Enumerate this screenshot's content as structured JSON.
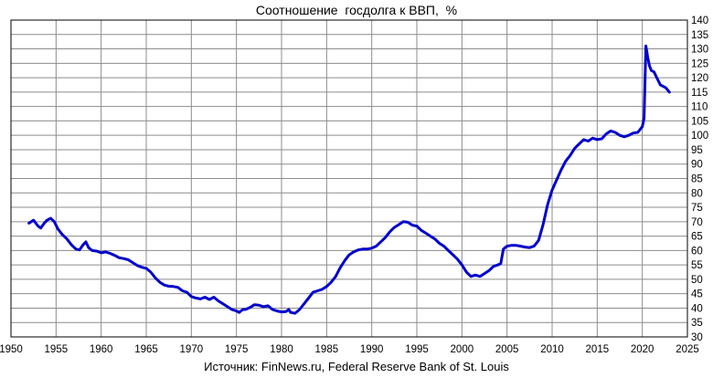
{
  "chart_data": {
    "type": "line",
    "title": "Соотношение  госдолга к ВВП,  %",
    "source": "Источник: FinNews.ru, Federal Reserve Bank of St. Louis",
    "xlim": [
      1950,
      2025
    ],
    "ylim": [
      30,
      140
    ],
    "xticks": [
      1950,
      1955,
      1960,
      1965,
      1970,
      1975,
      1980,
      1985,
      1990,
      1995,
      2000,
      2005,
      2010,
      2015,
      2020,
      2025
    ],
    "yticks": [
      30,
      35,
      40,
      45,
      50,
      55,
      60,
      65,
      70,
      75,
      80,
      85,
      90,
      95,
      100,
      105,
      110,
      115,
      120,
      125,
      130,
      135,
      140
    ],
    "grid": true,
    "line_color": "#0000cc",
    "series": [
      {
        "points": [
          [
            1952.0,
            69.5
          ],
          [
            1952.5,
            70.5
          ],
          [
            1953.0,
            68.5
          ],
          [
            1953.3,
            67.8
          ],
          [
            1953.7,
            69.5
          ],
          [
            1954.0,
            70.5
          ],
          [
            1954.4,
            71.2
          ],
          [
            1954.8,
            70.0
          ],
          [
            1955.2,
            67.5
          ],
          [
            1955.7,
            65.5
          ],
          [
            1956.2,
            64.0
          ],
          [
            1956.7,
            62.0
          ],
          [
            1957.2,
            60.5
          ],
          [
            1957.6,
            60.2
          ],
          [
            1958.0,
            62.0
          ],
          [
            1958.3,
            63.0
          ],
          [
            1958.6,
            61.0
          ],
          [
            1959.0,
            60.0
          ],
          [
            1959.5,
            59.8
          ],
          [
            1960.0,
            59.2
          ],
          [
            1960.5,
            59.5
          ],
          [
            1961.0,
            59.0
          ],
          [
            1961.5,
            58.3
          ],
          [
            1962.0,
            57.5
          ],
          [
            1962.5,
            57.2
          ],
          [
            1963.0,
            56.8
          ],
          [
            1963.5,
            55.8
          ],
          [
            1964.0,
            54.8
          ],
          [
            1964.5,
            54.2
          ],
          [
            1965.0,
            53.8
          ],
          [
            1965.5,
            52.5
          ],
          [
            1966.0,
            50.5
          ],
          [
            1966.5,
            49.0
          ],
          [
            1967.0,
            48.0
          ],
          [
            1967.5,
            47.6
          ],
          [
            1968.0,
            47.5
          ],
          [
            1968.5,
            47.2
          ],
          [
            1969.0,
            46.0
          ],
          [
            1969.5,
            45.5
          ],
          [
            1970.0,
            44.0
          ],
          [
            1970.5,
            43.5
          ],
          [
            1971.0,
            43.2
          ],
          [
            1971.5,
            43.8
          ],
          [
            1972.0,
            43.0
          ],
          [
            1972.5,
            43.8
          ],
          [
            1973.0,
            42.5
          ],
          [
            1973.5,
            41.5
          ],
          [
            1974.0,
            40.5
          ],
          [
            1974.5,
            39.5
          ],
          [
            1975.0,
            39.0
          ],
          [
            1975.3,
            38.5
          ],
          [
            1975.7,
            39.5
          ],
          [
            1976.0,
            39.5
          ],
          [
            1976.5,
            40.2
          ],
          [
            1977.0,
            41.2
          ],
          [
            1977.5,
            41.0
          ],
          [
            1978.0,
            40.5
          ],
          [
            1978.5,
            40.8
          ],
          [
            1979.0,
            39.5
          ],
          [
            1979.5,
            39.0
          ],
          [
            1980.0,
            38.7
          ],
          [
            1980.5,
            38.8
          ],
          [
            1980.8,
            39.5
          ],
          [
            1981.0,
            38.5
          ],
          [
            1981.5,
            38.2
          ],
          [
            1982.0,
            39.5
          ],
          [
            1982.5,
            41.5
          ],
          [
            1983.0,
            43.5
          ],
          [
            1983.5,
            45.5
          ],
          [
            1984.0,
            46.0
          ],
          [
            1984.5,
            46.5
          ],
          [
            1985.0,
            47.5
          ],
          [
            1985.5,
            49.0
          ],
          [
            1986.0,
            51.0
          ],
          [
            1986.5,
            54.0
          ],
          [
            1987.0,
            56.5
          ],
          [
            1987.5,
            58.5
          ],
          [
            1988.0,
            59.5
          ],
          [
            1988.5,
            60.2
          ],
          [
            1989.0,
            60.5
          ],
          [
            1989.5,
            60.5
          ],
          [
            1990.0,
            60.8
          ],
          [
            1990.5,
            61.5
          ],
          [
            1991.0,
            63.0
          ],
          [
            1991.5,
            64.5
          ],
          [
            1992.0,
            66.5
          ],
          [
            1992.5,
            68.0
          ],
          [
            1993.0,
            69.0
          ],
          [
            1993.5,
            70.0
          ],
          [
            1994.0,
            69.8
          ],
          [
            1994.5,
            68.8
          ],
          [
            1995.0,
            68.5
          ],
          [
            1995.5,
            67.0
          ],
          [
            1996.0,
            66.0
          ],
          [
            1996.5,
            65.0
          ],
          [
            1997.0,
            64.0
          ],
          [
            1997.5,
            62.5
          ],
          [
            1998.0,
            61.5
          ],
          [
            1998.5,
            60.0
          ],
          [
            1999.0,
            58.5
          ],
          [
            1999.5,
            57.0
          ],
          [
            2000.0,
            55.0
          ],
          [
            2000.5,
            52.5
          ],
          [
            2001.0,
            51.0
          ],
          [
            2001.5,
            51.5
          ],
          [
            2002.0,
            51.0
          ],
          [
            2002.5,
            52.0
          ],
          [
            2003.0,
            53.0
          ],
          [
            2003.5,
            54.5
          ],
          [
            2004.0,
            55.0
          ],
          [
            2004.3,
            55.5
          ],
          [
            2004.6,
            60.5
          ],
          [
            2005.0,
            61.5
          ],
          [
            2005.5,
            61.8
          ],
          [
            2006.0,
            61.8
          ],
          [
            2006.5,
            61.5
          ],
          [
            2007.0,
            61.2
          ],
          [
            2007.5,
            61.0
          ],
          [
            2008.0,
            61.5
          ],
          [
            2008.5,
            63.5
          ],
          [
            2009.0,
            69.0
          ],
          [
            2009.5,
            76.0
          ],
          [
            2010.0,
            81.0
          ],
          [
            2010.5,
            84.5
          ],
          [
            2011.0,
            88.0
          ],
          [
            2011.5,
            91.0
          ],
          [
            2012.0,
            93.0
          ],
          [
            2012.5,
            95.5
          ],
          [
            2013.0,
            97.0
          ],
          [
            2013.5,
            98.5
          ],
          [
            2014.0,
            98.0
          ],
          [
            2014.5,
            99.0
          ],
          [
            2015.0,
            98.5
          ],
          [
            2015.5,
            98.8
          ],
          [
            2016.0,
            100.5
          ],
          [
            2016.5,
            101.5
          ],
          [
            2017.0,
            101.0
          ],
          [
            2017.5,
            100.0
          ],
          [
            2018.0,
            99.5
          ],
          [
            2018.5,
            100.0
          ],
          [
            2019.0,
            100.8
          ],
          [
            2019.5,
            101.0
          ],
          [
            2020.0,
            103.0
          ],
          [
            2020.2,
            106.0
          ],
          [
            2020.4,
            131.0
          ],
          [
            2020.6,
            127.0
          ],
          [
            2020.8,
            124.0
          ],
          [
            2021.0,
            122.5
          ],
          [
            2021.3,
            122.0
          ],
          [
            2021.6,
            120.0
          ],
          [
            2022.0,
            117.5
          ],
          [
            2022.3,
            117.0
          ],
          [
            2022.6,
            116.5
          ],
          [
            2023.0,
            115.0
          ]
        ]
      }
    ]
  }
}
